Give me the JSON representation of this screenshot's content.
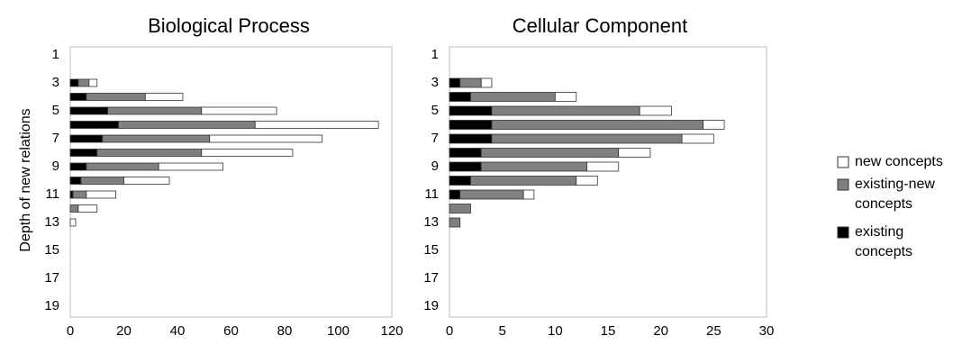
{
  "y_axis_label": "Depth of new relations",
  "legend": [
    {
      "label_lines": [
        "new concepts"
      ],
      "color": "#ffffff"
    },
    {
      "label_lines": [
        "existing-new",
        "concepts"
      ],
      "color": "#808080"
    },
    {
      "label_lines": [
        "existing",
        "concepts"
      ],
      "color": "#000000"
    }
  ],
  "chart_data": [
    {
      "type": "bar",
      "orientation": "horizontal",
      "stacked": true,
      "title": "Biological Process",
      "ylabel": "Depth of new relations",
      "categories": [
        1,
        2,
        3,
        4,
        5,
        6,
        7,
        8,
        9,
        10,
        11,
        12,
        13,
        14,
        15,
        16,
        17,
        18,
        19
      ],
      "ytick_labels": [
        "1",
        "3",
        "5",
        "7",
        "9",
        "11",
        "13",
        "15",
        "17",
        "19"
      ],
      "xlim": [
        0,
        120
      ],
      "xticks": [
        "0",
        "20",
        "40",
        "60",
        "80",
        "100",
        "120"
      ],
      "series": [
        {
          "name": "existing concepts",
          "color": "#000000",
          "values": [
            0,
            0,
            3,
            6,
            14,
            18,
            12,
            10,
            6,
            4,
            1,
            0,
            0,
            0,
            0,
            0,
            0,
            0,
            0
          ]
        },
        {
          "name": "existing-new concepts",
          "color": "#808080",
          "values": [
            0,
            0,
            4,
            22,
            35,
            51,
            40,
            39,
            27,
            16,
            5,
            3,
            0,
            0,
            0,
            0,
            0,
            0,
            0
          ]
        },
        {
          "name": "new concepts",
          "color": "#ffffff",
          "values": [
            0,
            0,
            3,
            14,
            28,
            46,
            42,
            34,
            24,
            17,
            11,
            7,
            2,
            0,
            0,
            0,
            0,
            0,
            0
          ]
        }
      ]
    },
    {
      "type": "bar",
      "orientation": "horizontal",
      "stacked": true,
      "title": "Cellular Component",
      "categories": [
        1,
        2,
        3,
        4,
        5,
        6,
        7,
        8,
        9,
        10,
        11,
        12,
        13,
        14,
        15,
        16,
        17,
        18,
        19
      ],
      "ytick_labels": [
        "1",
        "3",
        "5",
        "7",
        "9",
        "11",
        "13",
        "15",
        "17",
        "19"
      ],
      "xlim": [
        0,
        30
      ],
      "xticks": [
        "0",
        "5",
        "10",
        "15",
        "20",
        "25",
        "30"
      ],
      "series": [
        {
          "name": "existing concepts",
          "color": "#000000",
          "values": [
            0,
            0,
            1,
            2,
            4,
            4,
            4,
            3,
            3,
            2,
            1,
            0,
            0,
            0,
            0,
            0,
            0,
            0,
            0
          ]
        },
        {
          "name": "existing-new concepts",
          "color": "#808080",
          "values": [
            0,
            0,
            2,
            8,
            14,
            20,
            18,
            13,
            10,
            10,
            6,
            2,
            1,
            0,
            0,
            0,
            0,
            0,
            0
          ]
        },
        {
          "name": "new concepts",
          "color": "#ffffff",
          "values": [
            0,
            0,
            1,
            2,
            3,
            2,
            3,
            3,
            3,
            2,
            1,
            0,
            0,
            0,
            0,
            0,
            0,
            0,
            0
          ]
        }
      ]
    }
  ]
}
